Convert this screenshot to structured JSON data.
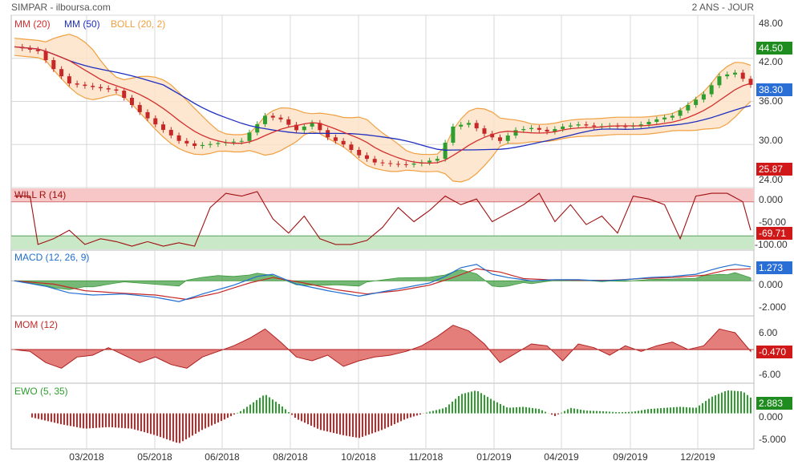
{
  "header": {
    "title": "SIMPAR - ilboursa.com",
    "period": "2 ANS - JOUR"
  },
  "colors": {
    "price_up": "#2e9e2e",
    "price_down": "#c62828",
    "ma20": "#d32f2f",
    "ma50": "#1f2fbf",
    "boll": "#f0a040",
    "boll_fill": "#fde3c8",
    "will_line": "#a01010",
    "will_over": "#f7c6c6",
    "will_under": "#c8e8c8",
    "macd_line": "#1e6fd0",
    "macd_signal": "#c62828",
    "macd_hist": "#3c9a3c",
    "mom_fill": "#d9534f",
    "ewo_pos": "#2e9e2e",
    "ewo_neg": "#c62828",
    "badge_green": "#1e8c1e",
    "badge_blue": "#2a6fd6",
    "badge_red": "#d01818",
    "grid": "#d8d8d8"
  },
  "x_axis": {
    "labels": [
      "03/2018",
      "05/2018",
      "06/2018",
      "08/2018",
      "10/2018",
      "11/2018",
      "01/2019",
      "04/2019",
      "09/2019",
      "12/2019"
    ]
  },
  "panels": {
    "price": {
      "legend": [
        {
          "text": "MM (20)",
          "color": "#d32f2f"
        },
        {
          "text": "MM (50)",
          "color": "#1f2fbf"
        },
        {
          "text": "BOLL (20, 2)",
          "color": "#f0a040"
        }
      ],
      "y_ticks": [
        "48.00",
        "42.00",
        "36.00",
        "30.00",
        "24.00"
      ],
      "badges": [
        {
          "value": "44.50",
          "color": "#1e8c1e"
        },
        {
          "value": "38.30",
          "color": "#2a6fd6"
        },
        {
          "value": "25.87",
          "color": "#d01818"
        }
      ]
    },
    "will": {
      "legend": "WILL R (14)",
      "y_ticks": [
        "0.000",
        "-50.00",
        "-100.00"
      ],
      "badge": {
        "value": "-69.71",
        "color": "#d01818"
      }
    },
    "macd": {
      "legend": "MACD (12, 26, 9)",
      "y_ticks": [
        "0.000",
        "-2.000"
      ],
      "badge": {
        "value": "1.273",
        "color": "#2a6fd6"
      }
    },
    "mom": {
      "legend": "MOM (12)",
      "y_ticks": [
        "6.00",
        "-6.00"
      ],
      "badge": {
        "value": "-0.470",
        "color": "#d01818"
      }
    },
    "ewo": {
      "legend": "EWO (5, 35)",
      "y_ticks": [
        "0.000",
        "-5.000"
      ],
      "badge": {
        "value": "2.883",
        "color": "#1e8c1e"
      }
    }
  },
  "chart_data": {
    "type": "line",
    "title": "SIMPAR - ilboursa.com",
    "timeframe": "2 ANS - JOUR",
    "price_ylim": [
      24,
      48
    ],
    "price_anchors": [
      [
        0,
        43.6
      ],
      [
        3,
        43.0
      ],
      [
        5,
        40.5
      ],
      [
        7,
        38.5
      ],
      [
        10,
        38.0
      ],
      [
        13,
        37.5
      ],
      [
        16,
        34.5
      ],
      [
        18,
        32.8
      ],
      [
        21,
        30.5
      ],
      [
        23,
        29.8
      ],
      [
        26,
        30.2
      ],
      [
        29,
        30.5
      ],
      [
        32,
        34.0
      ],
      [
        34,
        33.5
      ],
      [
        36,
        32.0
      ],
      [
        38,
        33.0
      ],
      [
        40,
        31.0
      ],
      [
        42,
        30.0
      ],
      [
        44,
        28.5
      ],
      [
        46,
        27.5
      ],
      [
        48,
        27.3
      ],
      [
        50,
        27.2
      ],
      [
        52,
        27.5
      ],
      [
        54,
        28.0
      ],
      [
        56,
        32.5
      ],
      [
        58,
        33.0
      ],
      [
        60,
        31.5
      ],
      [
        62,
        30.5
      ],
      [
        64,
        32.0
      ],
      [
        66,
        32.3
      ],
      [
        68,
        31.8
      ],
      [
        70,
        32.5
      ],
      [
        72,
        32.8
      ],
      [
        74,
        32.5
      ],
      [
        76,
        32.6
      ],
      [
        78,
        32.5
      ],
      [
        80,
        32.8
      ],
      [
        82,
        33.5
      ],
      [
        84,
        34.0
      ],
      [
        86,
        35.5
      ],
      [
        88,
        37.0
      ],
      [
        90,
        39.5
      ],
      [
        92,
        40.0
      ],
      [
        94,
        38.3
      ]
    ],
    "willr_ylim": [
      -105,
      5
    ],
    "willr_anchors": [
      [
        0,
        -10
      ],
      [
        2,
        -10
      ],
      [
        3,
        -95
      ],
      [
        5,
        -85
      ],
      [
        7,
        -70
      ],
      [
        9,
        -95
      ],
      [
        11,
        -85
      ],
      [
        13,
        -90
      ],
      [
        15,
        -98
      ],
      [
        17,
        -90
      ],
      [
        19,
        -98
      ],
      [
        21,
        -92
      ],
      [
        23,
        -98
      ],
      [
        25,
        -30
      ],
      [
        27,
        -5
      ],
      [
        29,
        -10
      ],
      [
        31,
        -2
      ],
      [
        33,
        -50
      ],
      [
        35,
        -75
      ],
      [
        37,
        -45
      ],
      [
        39,
        -85
      ],
      [
        41,
        -95
      ],
      [
        43,
        -95
      ],
      [
        45,
        -88
      ],
      [
        47,
        -65
      ],
      [
        49,
        -30
      ],
      [
        51,
        -55
      ],
      [
        53,
        -35
      ],
      [
        55,
        -10
      ],
      [
        57,
        -25
      ],
      [
        59,
        -15
      ],
      [
        61,
        -55
      ],
      [
        63,
        -40
      ],
      [
        65,
        -25
      ],
      [
        67,
        -5
      ],
      [
        69,
        -55
      ],
      [
        71,
        -25
      ],
      [
        73,
        -60
      ],
      [
        75,
        -45
      ],
      [
        77,
        -75
      ],
      [
        79,
        -10
      ],
      [
        81,
        -15
      ],
      [
        83,
        -25
      ],
      [
        85,
        -85
      ],
      [
        87,
        -10
      ],
      [
        89,
        -5
      ],
      [
        91,
        -5
      ],
      [
        93,
        -20
      ],
      [
        94,
        -70
      ]
    ],
    "macd_ylim": [
      -3.2,
      2.8
    ],
    "macd_anchors": [
      [
        0,
        0.0
      ],
      [
        4,
        -0.5
      ],
      [
        7,
        -1.1
      ],
      [
        10,
        -1.3
      ],
      [
        14,
        -1.2
      ],
      [
        18,
        -1.5
      ],
      [
        21,
        -1.9
      ],
      [
        24,
        -1.2
      ],
      [
        28,
        -0.4
      ],
      [
        31,
        0.4
      ],
      [
        33,
        0.6
      ],
      [
        36,
        -0.3
      ],
      [
        40,
        -0.9
      ],
      [
        44,
        -1.4
      ],
      [
        47,
        -1.0
      ],
      [
        50,
        -0.6
      ],
      [
        53,
        -0.2
      ],
      [
        55,
        0.4
      ],
      [
        57,
        1.2
      ],
      [
        59,
        1.5
      ],
      [
        61,
        0.6
      ],
      [
        63,
        0.3
      ],
      [
        66,
        0.0
      ],
      [
        69,
        0.1
      ],
      [
        72,
        0.1
      ],
      [
        75,
        0.0
      ],
      [
        78,
        0.1
      ],
      [
        81,
        0.3
      ],
      [
        84,
        0.4
      ],
      [
        87,
        0.6
      ],
      [
        90,
        1.2
      ],
      [
        92,
        1.5
      ],
      [
        94,
        1.273
      ]
    ],
    "macd_signal_anchors": [
      [
        0,
        0.0
      ],
      [
        5,
        -0.3
      ],
      [
        9,
        -0.9
      ],
      [
        13,
        -1.1
      ],
      [
        18,
        -1.3
      ],
      [
        22,
        -1.7
      ],
      [
        26,
        -1.1
      ],
      [
        30,
        -0.2
      ],
      [
        33,
        0.3
      ],
      [
        37,
        -0.2
      ],
      [
        41,
        -0.8
      ],
      [
        45,
        -1.2
      ],
      [
        49,
        -0.9
      ],
      [
        53,
        -0.4
      ],
      [
        56,
        0.3
      ],
      [
        59,
        1.1
      ],
      [
        62,
        0.8
      ],
      [
        65,
        0.2
      ],
      [
        68,
        0.1
      ],
      [
        72,
        0.05
      ],
      [
        76,
        0.05
      ],
      [
        80,
        0.2
      ],
      [
        84,
        0.3
      ],
      [
        88,
        0.5
      ],
      [
        91,
        1.0
      ],
      [
        94,
        1.1
      ]
    ],
    "mom_ylim": [
      -9,
      9
    ],
    "mom_anchors": [
      [
        0,
        0
      ],
      [
        2,
        -0.5
      ],
      [
        4,
        -3.5
      ],
      [
        6,
        -5.0
      ],
      [
        8,
        -2.0
      ],
      [
        10,
        -1.5
      ],
      [
        12,
        0.5
      ],
      [
        14,
        -1.5
      ],
      [
        16,
        -3.5
      ],
      [
        18,
        -2.0
      ],
      [
        20,
        -4.0
      ],
      [
        22,
        -5.0
      ],
      [
        24,
        -2.0
      ],
      [
        26,
        -0.5
      ],
      [
        28,
        1.0
      ],
      [
        30,
        3.0
      ],
      [
        32,
        5.5
      ],
      [
        34,
        2.0
      ],
      [
        36,
        -2.0
      ],
      [
        38,
        -3.0
      ],
      [
        40,
        -1.5
      ],
      [
        42,
        -4.5
      ],
      [
        44,
        -3.0
      ],
      [
        46,
        -2.0
      ],
      [
        48,
        -1.5
      ],
      [
        50,
        -0.5
      ],
      [
        52,
        1.0
      ],
      [
        54,
        3.5
      ],
      [
        56,
        6.5
      ],
      [
        58,
        5.0
      ],
      [
        60,
        1.5
      ],
      [
        62,
        -3.5
      ],
      [
        64,
        -1.0
      ],
      [
        66,
        1.5
      ],
      [
        68,
        1.0
      ],
      [
        70,
        -3.0
      ],
      [
        72,
        1.5
      ],
      [
        74,
        0.5
      ],
      [
        76,
        -1.5
      ],
      [
        78,
        1.0
      ],
      [
        80,
        -0.5
      ],
      [
        82,
        1.0
      ],
      [
        84,
        2.0
      ],
      [
        86,
        0.0
      ],
      [
        88,
        1.0
      ],
      [
        90,
        5.5
      ],
      [
        92,
        4.5
      ],
      [
        94,
        -0.47
      ]
    ],
    "ewo_ylim": [
      -6.5,
      5.5
    ],
    "ewo_anchors": [
      [
        0,
        0
      ],
      [
        3,
        -1.0
      ],
      [
        6,
        -2.0
      ],
      [
        9,
        -2.8
      ],
      [
        12,
        -2.5
      ],
      [
        15,
        -2.8
      ],
      [
        18,
        -4.0
      ],
      [
        21,
        -5.5
      ],
      [
        24,
        -3.0
      ],
      [
        27,
        -1.0
      ],
      [
        29,
        0.5
      ],
      [
        32,
        3.5
      ],
      [
        34,
        1.5
      ],
      [
        36,
        -1.0
      ],
      [
        39,
        -3.0
      ],
      [
        42,
        -4.0
      ],
      [
        44,
        -4.5
      ],
      [
        47,
        -3.0
      ],
      [
        50,
        -1.0
      ],
      [
        53,
        0.3
      ],
      [
        55,
        1.0
      ],
      [
        57,
        3.5
      ],
      [
        59,
        4.2
      ],
      [
        61,
        2.5
      ],
      [
        63,
        1.0
      ],
      [
        65,
        1.2
      ],
      [
        67,
        0.8
      ],
      [
        69,
        -0.5
      ],
      [
        71,
        1.0
      ],
      [
        73,
        0.5
      ],
      [
        75,
        0.4
      ],
      [
        77,
        0.2
      ],
      [
        79,
        0.3
      ],
      [
        81,
        0.8
      ],
      [
        83,
        1.0
      ],
      [
        85,
        1.2
      ],
      [
        87,
        1.0
      ],
      [
        89,
        3.0
      ],
      [
        91,
        4.2
      ],
      [
        93,
        4.0
      ],
      [
        94,
        2.883
      ]
    ]
  }
}
